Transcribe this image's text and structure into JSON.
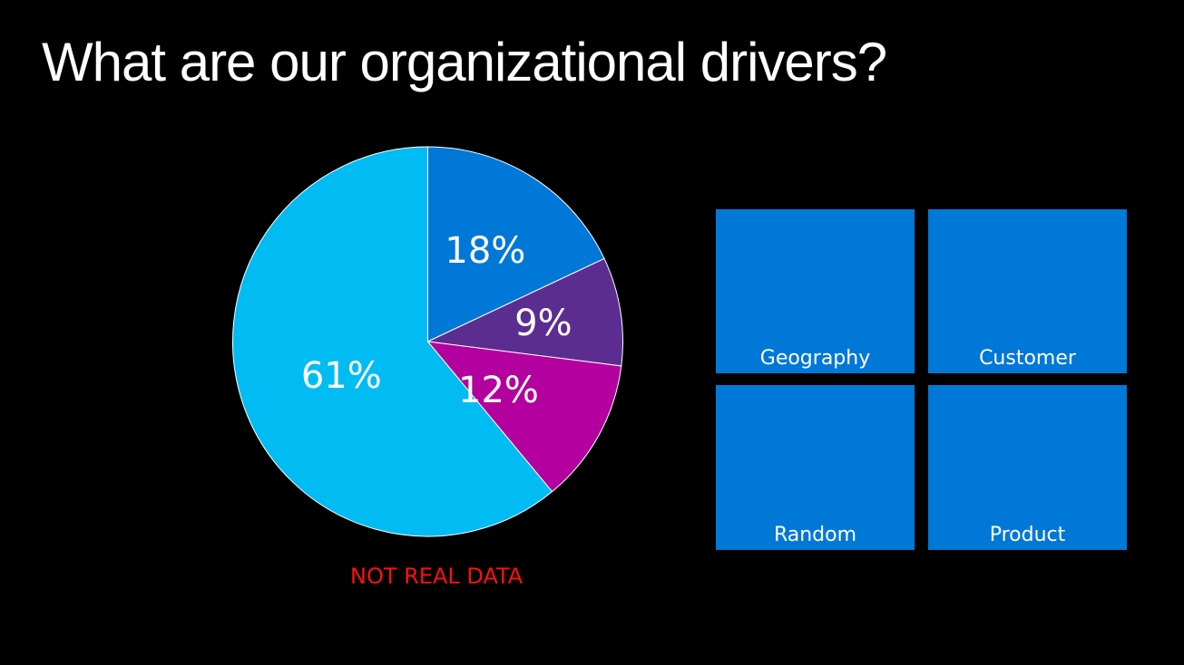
{
  "slide": {
    "title": "What are our organizational drivers?",
    "disclaimer": "NOT REAL DATA"
  },
  "chart_data": {
    "type": "pie",
    "title": "",
    "slices": [
      {
        "label": "18%",
        "value": 18,
        "color": "#0078d7"
      },
      {
        "label": "9%",
        "value": 9,
        "color": "#5c2d91"
      },
      {
        "label": "12%",
        "value": 12,
        "color": "#b4009e"
      },
      {
        "label": "61%",
        "value": 61,
        "color": "#00bcf2"
      }
    ],
    "start_angle": "12 o'clock",
    "direction": "clockwise",
    "legend": "none"
  },
  "tiles": [
    {
      "label": "Geography",
      "color": "#0078d7"
    },
    {
      "label": "Customer",
      "color": "#0078d7"
    },
    {
      "label": "Random",
      "color": "#0078d7"
    },
    {
      "label": "Product",
      "color": "#0078d7"
    }
  ]
}
